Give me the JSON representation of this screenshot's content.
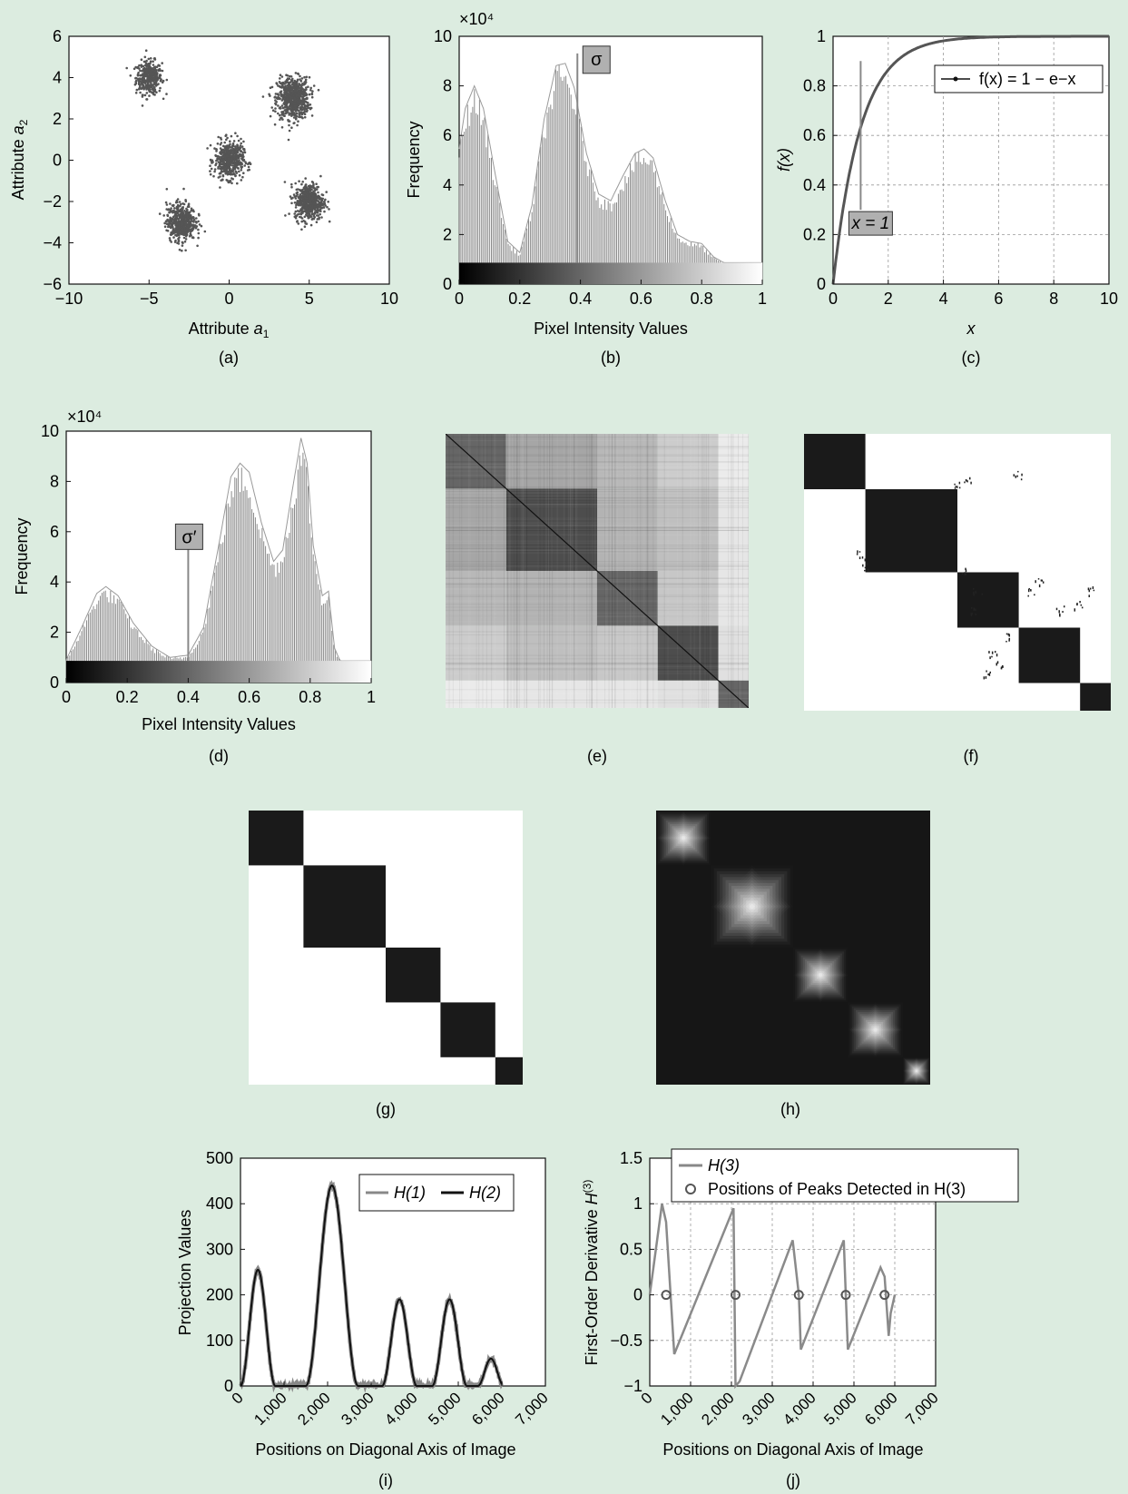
{
  "colors": {
    "background": "#dcece0",
    "data": "#555555",
    "axis": "#111111",
    "grid": "#999999",
    "box": "#b0b0b0"
  },
  "chart_data": [
    {
      "id": "a",
      "panel_label": "(a)",
      "type": "scatter",
      "xlabel": "Attribute a1",
      "ylabel": "Attribute a2",
      "xlim": [
        -10,
        10
      ],
      "ylim": [
        -6,
        6
      ],
      "xticks": [
        "−10",
        "−5",
        "0",
        "5",
        "10"
      ],
      "yticks": [
        "−6",
        "−4",
        "−2",
        "0",
        "2",
        "4",
        "6"
      ],
      "clusters": [
        {
          "center": [
            -5,
            4
          ],
          "spread": 0.4,
          "n": 380
        },
        {
          "center": [
            4,
            3
          ],
          "spread": 0.5,
          "n": 700
        },
        {
          "center": [
            0,
            0
          ],
          "spread": 0.45,
          "n": 500
        },
        {
          "center": [
            5,
            -2
          ],
          "spread": 0.45,
          "n": 500
        },
        {
          "center": [
            -3,
            -3
          ],
          "spread": 0.45,
          "n": 500
        }
      ]
    },
    {
      "id": "b",
      "panel_label": "(b)",
      "type": "bar",
      "xlabel": "Pixel Intensity Values",
      "ylabel": "Frequency",
      "multiplier": "×10⁴",
      "xlim": [
        0,
        1
      ],
      "ylim": [
        0,
        11
      ],
      "xticks": [
        "0",
        "0.2",
        "0.4",
        "0.6",
        "0.8",
        "1"
      ],
      "yticks": [
        "0",
        "2",
        "4",
        "6",
        "8",
        "10"
      ],
      "envelope_x": [
        0.0,
        0.02,
        0.05,
        0.08,
        0.12,
        0.16,
        0.2,
        0.24,
        0.28,
        0.32,
        0.35,
        0.38,
        0.42,
        0.46,
        0.5,
        0.54,
        0.58,
        0.61,
        0.64,
        0.68,
        0.72,
        0.76,
        0.8,
        0.84,
        0.88,
        0.92,
        1.0
      ],
      "envelope_y": [
        6.0,
        7.8,
        8.8,
        7.8,
        4.8,
        1.9,
        1.4,
        3.5,
        7.3,
        9.7,
        9.8,
        8.7,
        5.8,
        4.0,
        3.7,
        4.8,
        5.8,
        6.0,
        5.6,
        3.7,
        2.2,
        1.9,
        1.8,
        1.2,
        0.9,
        0.9,
        0.9
      ],
      "marker": {
        "x": 0.39,
        "y": 10.0,
        "label": "σ"
      }
    },
    {
      "id": "c",
      "panel_label": "(c)",
      "type": "line",
      "xlabel": "x",
      "ylabel": "f(x)",
      "xlim": [
        0,
        10
      ],
      "ylim": [
        0,
        1
      ],
      "xticks": [
        "0",
        "2",
        "4",
        "6",
        "8",
        "10"
      ],
      "yticks": [
        "0",
        "0.2",
        "0.4",
        "0.6",
        "0.8",
        "1"
      ],
      "grid": true,
      "series": [
        {
          "name": "f(x) = 1 − e−x"
        }
      ],
      "annotation": {
        "x": 1,
        "y_from": 0.3,
        "y_to": 0.9,
        "label": "x = 1"
      }
    },
    {
      "id": "d",
      "panel_label": "(d)",
      "type": "bar",
      "xlabel": "Pixel Intensity Values",
      "ylabel": "Frequency",
      "multiplier": "×10⁴",
      "xlim": [
        0,
        1
      ],
      "ylim": [
        0,
        11
      ],
      "xticks": [
        "0",
        "0.2",
        "0.4",
        "0.6",
        "0.8",
        "1"
      ],
      "yticks": [
        "0",
        "2",
        "4",
        "6",
        "8",
        "10"
      ],
      "envelope_x": [
        0.0,
        0.05,
        0.1,
        0.13,
        0.17,
        0.22,
        0.28,
        0.34,
        0.4,
        0.45,
        0.5,
        0.54,
        0.57,
        0.6,
        0.64,
        0.68,
        0.71,
        0.74,
        0.77,
        0.79,
        0.81,
        0.84,
        0.86,
        0.88,
        0.9,
        1.0
      ],
      "envelope_y": [
        1.0,
        2.4,
        3.9,
        4.2,
        3.8,
        2.6,
        1.6,
        1.1,
        1.2,
        2.4,
        6.0,
        9.0,
        9.6,
        9.2,
        7.0,
        5.3,
        5.8,
        8.3,
        10.7,
        9.6,
        6.0,
        3.8,
        4.0,
        1.5,
        0.9,
        0.9
      ],
      "marker": {
        "x": 0.4,
        "y": 6.3,
        "label": "σ′"
      }
    },
    {
      "id": "e",
      "panel_label": "(e)",
      "type": "heatmap",
      "block_bounds": [
        0,
        0.2,
        0.5,
        0.7,
        0.9,
        1.0
      ],
      "diag_levels": [
        0.4,
        0.3,
        0.4,
        0.3,
        0.4
      ],
      "off_levels": [
        [
          0.4,
          0.65,
          0.72,
          0.8,
          0.92
        ],
        [
          0.65,
          0.3,
          0.7,
          0.75,
          0.9
        ],
        [
          0.72,
          0.7,
          0.4,
          0.78,
          0.9
        ],
        [
          0.8,
          0.75,
          0.78,
          0.3,
          0.88
        ],
        [
          0.92,
          0.9,
          0.9,
          0.88,
          0.4
        ]
      ]
    },
    {
      "id": "f",
      "panel_label": "(f)",
      "type": "heatmap",
      "block_bounds": [
        0,
        0.2,
        0.5,
        0.7,
        0.9,
        1.0
      ]
    },
    {
      "id": "g",
      "panel_label": "(g)",
      "type": "heatmap",
      "block_bounds": [
        0,
        0.2,
        0.5,
        0.7,
        0.9,
        1.0
      ]
    },
    {
      "id": "h",
      "panel_label": "(h)",
      "type": "heatmap",
      "block_bounds": [
        0,
        0.2,
        0.5,
        0.7,
        0.9,
        1.0
      ]
    },
    {
      "id": "i",
      "panel_label": "(i)",
      "type": "line",
      "xlabel": "Positions on Diagonal Axis of Image",
      "ylabel": "Projection Values",
      "xlim": [
        0,
        7000
      ],
      "ylim": [
        0,
        500
      ],
      "xticks": [
        "0",
        "1,000",
        "2,000",
        "3,000",
        "4,000",
        "5,000",
        "6,000",
        "7,000"
      ],
      "yticks": [
        "0",
        "100",
        "200",
        "300",
        "400",
        "500"
      ],
      "series": [
        {
          "name": "H(1)",
          "color": "#888888"
        },
        {
          "name": "H(2)",
          "color": "#111111"
        }
      ],
      "peaks": [
        {
          "x": 400,
          "y": 255,
          "halfwidth": 400
        },
        {
          "x": 2100,
          "y": 440,
          "halfwidth": 600
        },
        {
          "x": 3650,
          "y": 190,
          "halfwidth": 400
        },
        {
          "x": 4800,
          "y": 190,
          "halfwidth": 400
        },
        {
          "x": 5750,
          "y": 60,
          "halfwidth": 300
        }
      ],
      "x_end": 6000
    },
    {
      "id": "j",
      "panel_label": "(j)",
      "type": "line",
      "xlabel": "Positions on Diagonal Axis of Image",
      "ylabel": "First-Order Derivative H(3)",
      "xlim": [
        0,
        7000
      ],
      "ylim": [
        -1,
        1.5
      ],
      "xticks": [
        "0",
        "1,000",
        "2,000",
        "3,000",
        "4,000",
        "5,000",
        "6,000",
        "7,000"
      ],
      "yticks": [
        "−1",
        "−0.5",
        "0",
        "0.5",
        "1",
        "1.5"
      ],
      "grid": true,
      "series": [
        {
          "name": "H(3)"
        },
        {
          "name": "Positions of Peaks Detected in H(3)"
        }
      ],
      "x": [
        0,
        300,
        400,
        600,
        2050,
        2100,
        2200,
        3500,
        3650,
        3700,
        4750,
        4800,
        4850,
        5650,
        5750,
        5850,
        5900,
        6000
      ],
      "y": [
        0,
        1.0,
        0.8,
        -0.65,
        0.95,
        -1.0,
        -0.95,
        0.6,
        0.0,
        -0.6,
        0.6,
        0.0,
        -0.6,
        0.3,
        0.2,
        -0.45,
        -0.2,
        0
      ],
      "peak_positions": [
        400,
        2100,
        3650,
        4800,
        5750
      ]
    }
  ]
}
